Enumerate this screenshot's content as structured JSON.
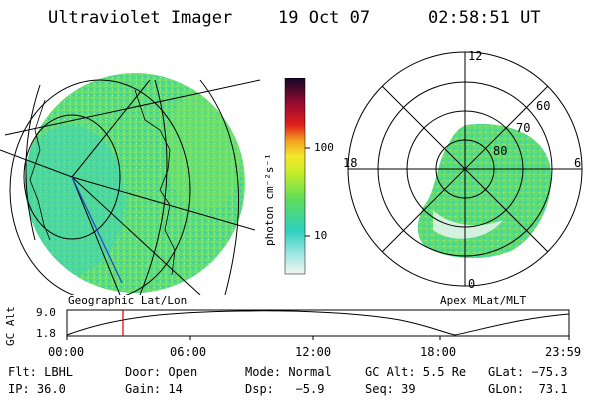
{
  "header": {
    "instrument": "Ultraviolet Imager",
    "date": "19 Oct 07",
    "time": "02:58:51 UT"
  },
  "colorbar": {
    "unit_label": "photon cm⁻²s⁻¹",
    "tick_100": "100",
    "tick_10": "10"
  },
  "polar": {
    "mlt_labels": {
      "top": "12",
      "left": "18",
      "right": "6",
      "bottom": "0"
    },
    "lat_labels": {
      "l60": "60",
      "l70": "70",
      "l80": "80"
    }
  },
  "panels": {
    "left_caption": "Geographic Lat/Lon",
    "right_caption": "Apex MLat/MLT"
  },
  "altitude_plot": {
    "ylabel": "GC Alt",
    "y_top": "9.0",
    "y_bottom": "1.8",
    "x_ticks": [
      "00:00",
      "06:00",
      "12:00",
      "18:00",
      "23:59"
    ]
  },
  "footer": {
    "filter": "Flt: LBHL",
    "door": "Door: Open",
    "mode": "Mode: Normal",
    "gc_alt": "GC Alt: 5.5 Re",
    "glat": "GLat: −75.3",
    "ip": "IP: 36.0",
    "gain": "Gain: 14",
    "dsp": "Dsp:   −5.9",
    "seq": "Seq: 39",
    "glon": "GLon:  73.1"
  },
  "colors": {
    "cyan": "#2fd4c6",
    "green": "#6ee06a",
    "marker": "#cc0000"
  }
}
